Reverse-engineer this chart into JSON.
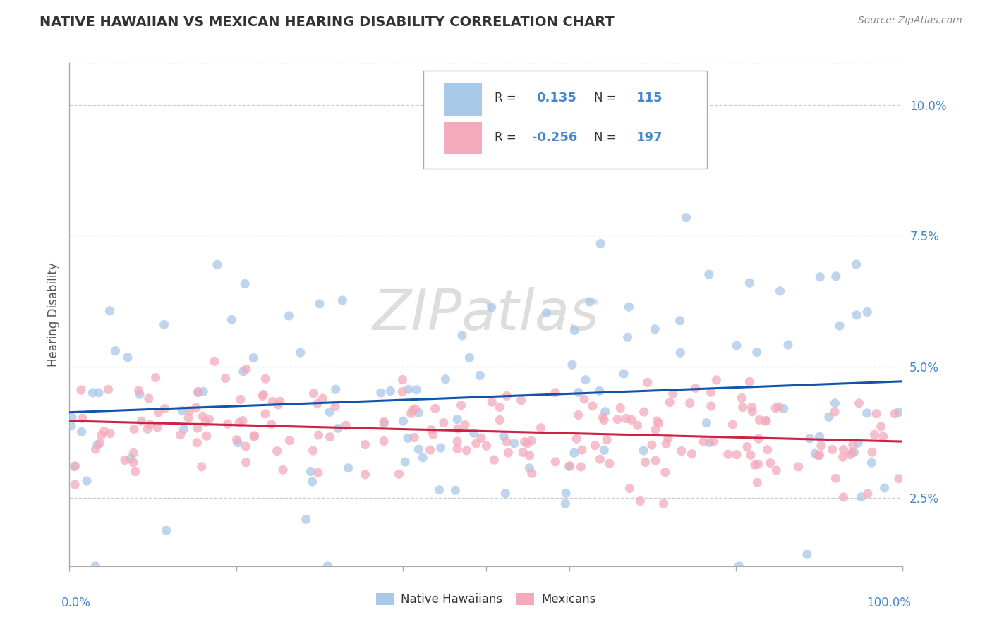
{
  "title": "NATIVE HAWAIIAN VS MEXICAN HEARING DISABILITY CORRELATION CHART",
  "source": "Source: ZipAtlas.com",
  "ylabel": "Hearing Disability",
  "yticks": [
    2.5,
    5.0,
    7.5,
    10.0
  ],
  "ytick_labels": [
    "2.5%",
    "5.0%",
    "7.5%",
    "10.0%"
  ],
  "xlim": [
    0,
    100
  ],
  "ylim": [
    1.2,
    10.8
  ],
  "blue_color": "#aac8e8",
  "blue_edge_color": "#6699cc",
  "pink_color": "#f4aabb",
  "pink_edge_color": "#cc6688",
  "blue_line_color": "#1155aa",
  "pink_line_color": "#cc2244",
  "background_color": "#ffffff",
  "grid_color": "#cccccc",
  "ytick_color": "#4488cc",
  "xtick_color": "#4488cc",
  "title_color": "#333333",
  "source_color": "#888888",
  "ylabel_color": "#555555",
  "legend_text_color": "#333333",
  "legend_R_color": "#4488cc",
  "legend_border_color": "#aaaaaa",
  "watermark_color": "#dddddd",
  "blue_R": 0.135,
  "blue_N": 115,
  "pink_R": -0.256,
  "pink_N": 197,
  "blue_seed": 12,
  "pink_seed": 99,
  "scatter_size": 90,
  "scatter_alpha": 0.75
}
